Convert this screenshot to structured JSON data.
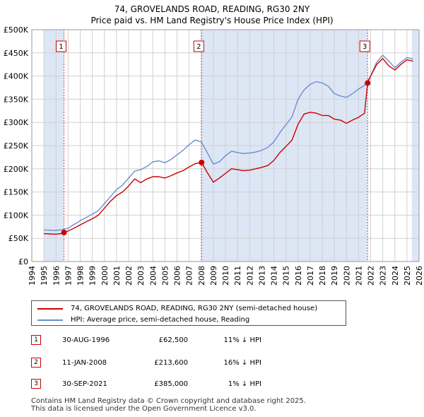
{
  "header": {
    "title_line1": "74, GROVELANDS ROAD, READING, RG30 2NY",
    "title_line2": "Price paid vs. HM Land Registry's House Price Index (HPI)"
  },
  "colors": {
    "property": "#cc0000",
    "hpi": "#6a8fd0",
    "shade": "#dde6f5",
    "grid": "#d0d0d0"
  },
  "chart_data": {
    "type": "line",
    "xlim": [
      1994,
      2026
    ],
    "ylim": [
      0,
      500000
    ],
    "x_ticks": [
      1994,
      1995,
      1996,
      1997,
      1998,
      1999,
      2000,
      2001,
      2002,
      2003,
      2004,
      2005,
      2006,
      2007,
      2008,
      2009,
      2010,
      2011,
      2012,
      2013,
      2014,
      2015,
      2016,
      2017,
      2018,
      2019,
      2020,
      2021,
      2022,
      2023,
      2024,
      2025,
      2026
    ],
    "y_ticks": [
      {
        "value": 0,
        "label": "£0"
      },
      {
        "value": 50000,
        "label": "£50K"
      },
      {
        "value": 100000,
        "label": "£100K"
      },
      {
        "value": 150000,
        "label": "£150K"
      },
      {
        "value": 200000,
        "label": "£200K"
      },
      {
        "value": 250000,
        "label": "£250K"
      },
      {
        "value": 300000,
        "label": "£300K"
      },
      {
        "value": 350000,
        "label": "£350K"
      },
      {
        "value": 400000,
        "label": "£400K"
      },
      {
        "value": 450000,
        "label": "£450K"
      },
      {
        "value": 500000,
        "label": "£500K"
      }
    ],
    "shaded_regions": [
      [
        1995.0,
        1996.66
      ],
      [
        2008.03,
        2021.75
      ],
      [
        2025.4,
        2026
      ]
    ],
    "series": [
      {
        "name": "74, GROVELANDS ROAD, READING, RG30 2NY (semi-detached house)",
        "color": "#cc0000",
        "x": [
          1995.0,
          1995.5,
          1996.0,
          1996.5,
          1996.66,
          1997.0,
          1997.5,
          1998.0,
          1998.5,
          1999.0,
          1999.5,
          2000.0,
          2000.5,
          2001.0,
          2001.5,
          2002.0,
          2002.5,
          2003.0,
          2003.5,
          2004.0,
          2004.5,
          2005.0,
          2005.5,
          2006.0,
          2006.5,
          2007.0,
          2007.5,
          2008.03,
          2008.5,
          2009.0,
          2009.5,
          2010.0,
          2010.5,
          2011.0,
          2011.5,
          2012.0,
          2012.5,
          2013.0,
          2013.5,
          2014.0,
          2014.5,
          2015.0,
          2015.5,
          2016.0,
          2016.5,
          2017.0,
          2017.5,
          2018.0,
          2018.5,
          2019.0,
          2019.5,
          2020.0,
          2020.5,
          2021.0,
          2021.5,
          2021.75,
          2022.0,
          2022.5,
          2023.0,
          2023.5,
          2024.0,
          2024.5,
          2025.0,
          2025.5
        ],
        "y": [
          60000,
          59500,
          59000,
          60500,
          62500,
          66000,
          72000,
          79000,
          86000,
          92000,
          100000,
          115000,
          130000,
          142000,
          150000,
          163000,
          178000,
          170000,
          178000,
          183000,
          183000,
          180000,
          185000,
          191000,
          196000,
          204000,
          211000,
          213600,
          192000,
          171000,
          180000,
          190000,
          200000,
          198000,
          196000,
          197000,
          200000,
          203000,
          207000,
          218000,
          235000,
          248000,
          262000,
          296000,
          318000,
          322000,
          320000,
          315000,
          315000,
          307000,
          305000,
          298000,
          305000,
          311000,
          320000,
          385000,
          400000,
          425000,
          438000,
          422000,
          413000,
          425000,
          435000,
          432000
        ]
      },
      {
        "name": "HPI: Average price, semi-detached house, Reading",
        "color": "#6a8fd0",
        "x": [
          1995.0,
          1995.5,
          1996.0,
          1996.5,
          1997.0,
          1997.5,
          1998.0,
          1998.5,
          1999.0,
          1999.5,
          2000.0,
          2000.5,
          2001.0,
          2001.5,
          2002.0,
          2002.5,
          2003.0,
          2003.5,
          2004.0,
          2004.5,
          2005.0,
          2005.5,
          2006.0,
          2006.5,
          2007.0,
          2007.5,
          2008.0,
          2008.5,
          2009.0,
          2009.5,
          2010.0,
          2010.5,
          2011.0,
          2011.5,
          2012.0,
          2012.5,
          2013.0,
          2013.5,
          2014.0,
          2014.5,
          2015.0,
          2015.5,
          2016.0,
          2016.5,
          2017.0,
          2017.5,
          2018.0,
          2018.5,
          2019.0,
          2019.5,
          2020.0,
          2020.5,
          2021.0,
          2021.5,
          2022.0,
          2022.5,
          2023.0,
          2023.5,
          2024.0,
          2024.5,
          2025.0,
          2025.5
        ],
        "y": [
          68000,
          67500,
          67000,
          68500,
          72000,
          80000,
          88000,
          95000,
          102000,
          110000,
          125000,
          140000,
          155000,
          165000,
          180000,
          195000,
          198000,
          205000,
          215000,
          217000,
          213000,
          220000,
          230000,
          240000,
          252000,
          262000,
          258000,
          235000,
          210000,
          215000,
          228000,
          238000,
          235000,
          233000,
          234000,
          236000,
          240000,
          246000,
          258000,
          278000,
          295000,
          312000,
          350000,
          370000,
          382000,
          388000,
          385000,
          378000,
          362000,
          357000,
          354000,
          362000,
          372000,
          380000,
          400000,
          430000,
          445000,
          432000,
          418000,
          430000,
          440000,
          437000
        ]
      }
    ],
    "sales": [
      {
        "label": "1",
        "x": 1996.66,
        "y": 62500
      },
      {
        "label": "2",
        "x": 2008.03,
        "y": 213600
      },
      {
        "label": "3",
        "x": 2021.75,
        "y": 385000
      }
    ]
  },
  "legend": {
    "property": "74, GROVELANDS ROAD, READING, RG30 2NY (semi-detached house)",
    "hpi": "HPI: Average price, semi-detached house, Reading"
  },
  "sales_table": [
    {
      "num": "1",
      "date": "30-AUG-1996",
      "price": "£62,500",
      "hpi": "11% ↓ HPI"
    },
    {
      "num": "2",
      "date": "11-JAN-2008",
      "price": "£213,600",
      "hpi": "16% ↓ HPI"
    },
    {
      "num": "3",
      "date": "30-SEP-2021",
      "price": "£385,000",
      "hpi": "1% ↓ HPI"
    }
  ],
  "footer": {
    "line1": "Contains HM Land Registry data © Crown copyright and database right 2025.",
    "line2": "This data is licensed under the Open Government Licence v3.0."
  }
}
